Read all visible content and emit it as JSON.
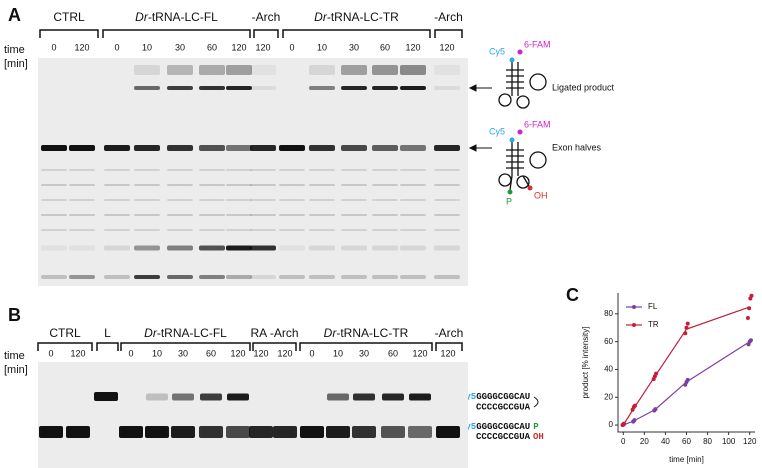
{
  "panel_a": {
    "label": "A",
    "time_label": [
      "time",
      "[min]"
    ],
    "groups": [
      {
        "title": "CTRL",
        "lanes": [
          0,
          120
        ]
      },
      {
        "title_italic": "Dr",
        "title": "-tRNA-LC-FL",
        "lanes": [
          0,
          10,
          30,
          60,
          120
        ]
      },
      {
        "title": "-Arch",
        "lanes": [
          120
        ]
      },
      {
        "title_italic": "Dr",
        "title": "-tRNA-LC-TR",
        "lanes": [
          0,
          10,
          30,
          60,
          120
        ]
      },
      {
        "title": "-Arch",
        "lanes": [
          120
        ]
      }
    ],
    "annotations": [
      "Ligated product",
      "Exon halves"
    ],
    "diagram_labels": {
      "top": [
        "Cy5",
        "6-FAM"
      ],
      "bottom": [
        "Cy5",
        "6-FAM",
        "P",
        "OH"
      ]
    }
  },
  "panel_b": {
    "label": "B",
    "time_label": [
      "time",
      "[min]"
    ],
    "groups": [
      {
        "title": "CTRL",
        "lanes": [
          0,
          120
        ]
      },
      {
        "title": "L",
        "lanes": []
      },
      {
        "title_italic": "Dr",
        "title": "-tRNA-LC-FL",
        "lanes": [
          0,
          10,
          30,
          60,
          120
        ]
      },
      {
        "title": "RA -Arch",
        "lanes": [
          120,
          120
        ]
      },
      {
        "title_italic": "Dr",
        "title": "-tRNA-LC-TR",
        "lanes": [
          0,
          10,
          30,
          60,
          120
        ]
      },
      {
        "title": "-Arch",
        "lanes": [
          120
        ]
      }
    ],
    "ligated": {
      "dye": "Cy5",
      "top": "GGGGCGGCAU",
      "bottom": "CCCCGCCGUA"
    },
    "halves": {
      "dye": "Cy5",
      "top": "GGGGCGGCAU",
      "bottom": "CCCCGCCGUA",
      "p": "P",
      "oh": "OH"
    }
  },
  "chart_data": {
    "type": "line",
    "label": "C",
    "x": [
      0,
      10,
      30,
      60,
      120
    ],
    "xlabel": "time [min]",
    "ylabel": "product [% intensity]",
    "xlim": [
      -5,
      125
    ],
    "ylim": [
      -5,
      95
    ],
    "xticks": [
      0,
      20,
      40,
      60,
      80,
      100,
      120
    ],
    "yticks": [
      0,
      20,
      40,
      60,
      80
    ],
    "legend": "upper-left",
    "series": [
      {
        "name": "FL",
        "color": "#7b3f9e",
        "values": [
          0,
          3,
          11,
          31,
          60
        ],
        "replicates": [
          [
            0,
            0.5
          ],
          [
            2.5,
            3.5
          ],
          [
            10.5,
            11.5
          ],
          [
            29,
            31,
            32.5
          ],
          [
            58,
            60,
            61
          ]
        ]
      },
      {
        "name": "TR",
        "color": "#c41e3a",
        "values": [
          0,
          12,
          35,
          69,
          85
        ],
        "replicates": [
          [
            0,
            1
          ],
          [
            11,
            13,
            14
          ],
          [
            33,
            35,
            37
          ],
          [
            66,
            70,
            73
          ],
          [
            77,
            84,
            91,
            93
          ]
        ]
      }
    ]
  }
}
